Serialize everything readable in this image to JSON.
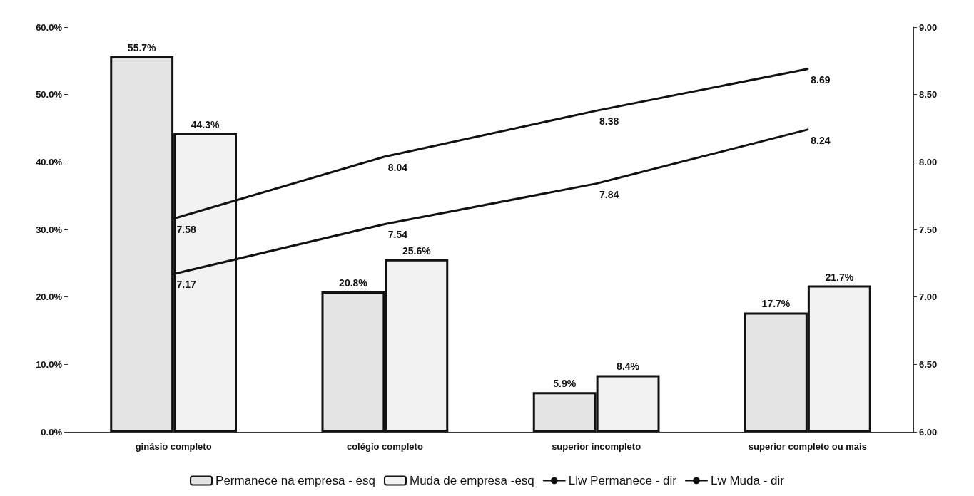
{
  "chart_data": {
    "type": "bar",
    "categories": [
      "ginásio completo",
      "colégio completo",
      "superior incompleto",
      "superior completo ou mais"
    ],
    "series": [
      {
        "name": "Permanece na empresa - esq",
        "color": "#e4e4e4",
        "values": [
          55.7,
          20.8,
          5.9,
          17.7
        ],
        "value_labels": [
          "55.7%",
          "20.8%",
          "5.9%",
          "17.7%"
        ]
      },
      {
        "name": "Muda de empresa -esq",
        "color": "#f2f2f2",
        "values": [
          44.3,
          25.6,
          8.4,
          21.7
        ],
        "value_labels": [
          "44.3%",
          "25.6%",
          "8.4%",
          "21.7%"
        ]
      },
      {
        "name": "Llw Permanece - dir",
        "type": "line",
        "axis": "y2",
        "color": "#111111",
        "values": [
          7.58,
          8.04,
          8.38,
          8.69
        ],
        "value_labels": [
          "7.58",
          "8.04",
          "8.38",
          "8.69"
        ]
      },
      {
        "name": "Lw Muda - dir",
        "type": "line",
        "axis": "y2",
        "color": "#111111",
        "values": [
          7.17,
          7.54,
          7.84,
          8.24
        ],
        "value_labels": [
          "7.17",
          "7.54",
          "7.84",
          "8.24"
        ]
      }
    ],
    "ylim": [
      0,
      60
    ],
    "yticks": [
      {
        "value": 0,
        "label": "0.0%"
      },
      {
        "value": 10,
        "label": "10.0%"
      },
      {
        "value": 20,
        "label": "20.0%"
      },
      {
        "value": 30,
        "label": "30.0%"
      },
      {
        "value": 40,
        "label": "40.0%"
      },
      {
        "value": 50,
        "label": "50.0%"
      },
      {
        "value": 60,
        "label": "60.0%"
      }
    ],
    "y2lim": [
      6,
      9
    ],
    "y2ticks": [
      {
        "value": 6,
        "label": "6.00"
      },
      {
        "value": 6.5,
        "label": "6.50"
      },
      {
        "value": 7,
        "label": "7.00"
      },
      {
        "value": 7.5,
        "label": "7.50"
      },
      {
        "value": 8,
        "label": "8.00"
      },
      {
        "value": 8.5,
        "label": "8.50"
      },
      {
        "value": 9,
        "label": "9.00"
      }
    ],
    "grid": false,
    "legend": "bottom",
    "marker": "none",
    "line_style": "solid"
  }
}
